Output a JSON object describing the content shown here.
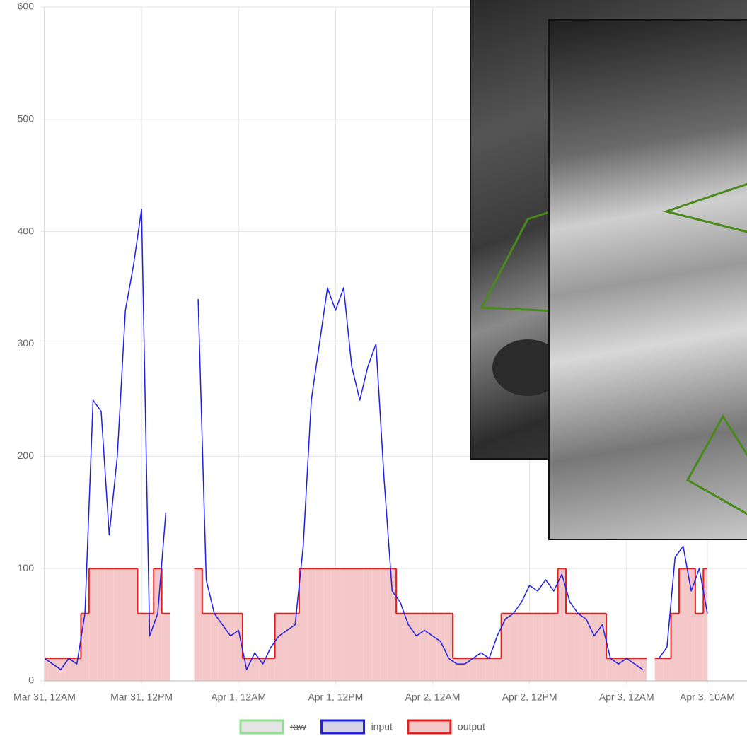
{
  "chart_data": {
    "type": "line",
    "categories": [
      "Mar 31, 12AM",
      null,
      null,
      null,
      null,
      null,
      null,
      null,
      null,
      null,
      null,
      null,
      "Mar 31, 12PM",
      null,
      null,
      null,
      null,
      null,
      null,
      null,
      null,
      null,
      null,
      null,
      "Apr 1, 12AM",
      null,
      null,
      null,
      null,
      null,
      null,
      null,
      null,
      null,
      null,
      null,
      "Apr 1, 12PM",
      null,
      null,
      null,
      null,
      null,
      null,
      null,
      null,
      null,
      null,
      null,
      "Apr 2, 12AM",
      null,
      null,
      null,
      null,
      null,
      null,
      null,
      null,
      null,
      null,
      null,
      "Apr 2, 12PM",
      null,
      null,
      null,
      null,
      null,
      null,
      null,
      null,
      null,
      null,
      null,
      "Apr 3, 12AM",
      null,
      null,
      null,
      null,
      null,
      null,
      null,
      null,
      null,
      "Apr 3, 10AM"
    ],
    "series": [
      {
        "name": "raw",
        "color": "#90e090",
        "hidden": true
      },
      {
        "name": "input",
        "color": "#1f1fe6",
        "values": [
          20,
          15,
          10,
          20,
          15,
          60,
          250,
          240,
          130,
          200,
          330,
          370,
          420,
          40,
          60,
          150,
          null,
          null,
          null,
          340,
          90,
          60,
          50,
          40,
          45,
          10,
          25,
          15,
          30,
          40,
          45,
          50,
          120,
          250,
          300,
          350,
          330,
          350,
          280,
          250,
          280,
          300,
          180,
          80,
          70,
          50,
          40,
          45,
          40,
          35,
          20,
          15,
          15,
          20,
          25,
          20,
          40,
          55,
          60,
          70,
          85,
          80,
          90,
          80,
          95,
          70,
          60,
          55,
          40,
          50,
          20,
          15,
          20,
          15,
          10,
          null,
          20,
          30,
          110,
          120,
          80,
          100,
          60
        ]
      },
      {
        "name": "output",
        "color": "#e61e1e",
        "fill": "#f4c8c8",
        "values": [
          20,
          20,
          20,
          20,
          20,
          60,
          100,
          100,
          100,
          100,
          100,
          100,
          60,
          60,
          100,
          60,
          null,
          null,
          null,
          100,
          60,
          60,
          60,
          60,
          60,
          20,
          20,
          20,
          20,
          60,
          60,
          60,
          100,
          100,
          100,
          100,
          100,
          100,
          100,
          100,
          100,
          100,
          100,
          100,
          60,
          60,
          60,
          60,
          60,
          60,
          60,
          20,
          20,
          20,
          20,
          20,
          20,
          60,
          60,
          60,
          60,
          60,
          60,
          60,
          100,
          60,
          60,
          60,
          60,
          60,
          20,
          20,
          20,
          20,
          20,
          null,
          20,
          20,
          60,
          100,
          100,
          60,
          100
        ]
      }
    ],
    "ylim": [
      0,
      600
    ],
    "yticks": [
      0,
      100,
      200,
      300,
      400,
      500,
      600
    ],
    "grid": true
  }
}
